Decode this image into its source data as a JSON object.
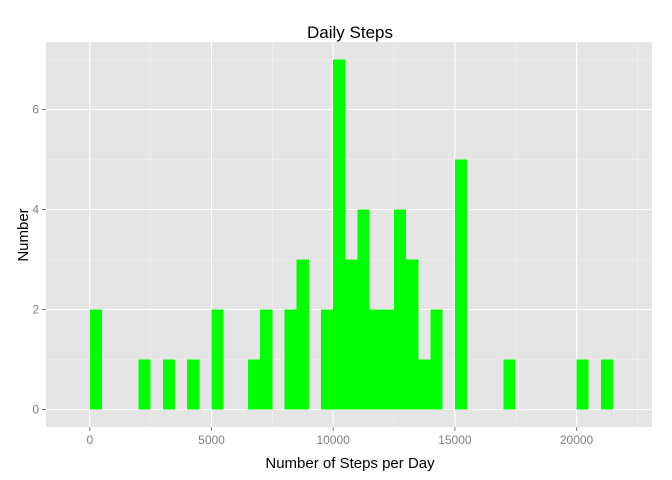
{
  "chart_data": {
    "type": "bar",
    "title": "Daily Steps",
    "xlabel": "Number of Steps per Day",
    "ylabel": "Number",
    "xlim": [
      -1800,
      23100
    ],
    "ylim": [
      -0.35,
      7.35
    ],
    "x_ticks": [
      0,
      5000,
      10000,
      15000,
      20000
    ],
    "x_tick_labels": [
      "0",
      "5000",
      "10000",
      "15000",
      "20000"
    ],
    "y_ticks": [
      0,
      2,
      4,
      6
    ],
    "y_tick_labels": [
      "0",
      "2",
      "4",
      "6"
    ],
    "bin_width": 500,
    "bins": [
      {
        "x0": 0,
        "x1": 500,
        "count": 2
      },
      {
        "x0": 2000,
        "x1": 2500,
        "count": 1
      },
      {
        "x0": 3000,
        "x1": 3500,
        "count": 1
      },
      {
        "x0": 4000,
        "x1": 4500,
        "count": 1
      },
      {
        "x0": 5000,
        "x1": 5500,
        "count": 2
      },
      {
        "x0": 6500,
        "x1": 7000,
        "count": 1
      },
      {
        "x0": 7000,
        "x1": 7500,
        "count": 2
      },
      {
        "x0": 8000,
        "x1": 8500,
        "count": 2
      },
      {
        "x0": 8500,
        "x1": 9000,
        "count": 3
      },
      {
        "x0": 9500,
        "x1": 10000,
        "count": 2
      },
      {
        "x0": 10000,
        "x1": 10500,
        "count": 7
      },
      {
        "x0": 10500,
        "x1": 11000,
        "count": 3
      },
      {
        "x0": 11000,
        "x1": 11500,
        "count": 4
      },
      {
        "x0": 11500,
        "x1": 12000,
        "count": 2
      },
      {
        "x0": 12000,
        "x1": 12500,
        "count": 2
      },
      {
        "x0": 12500,
        "x1": 13000,
        "count": 4
      },
      {
        "x0": 13000,
        "x1": 13500,
        "count": 3
      },
      {
        "x0": 13500,
        "x1": 14000,
        "count": 1
      },
      {
        "x0": 14000,
        "x1": 14500,
        "count": 2
      },
      {
        "x0": 15000,
        "x1": 15500,
        "count": 5
      },
      {
        "x0": 17000,
        "x1": 17500,
        "count": 1
      },
      {
        "x0": 20000,
        "x1": 20500,
        "count": 1
      },
      {
        "x0": 21000,
        "x1": 21500,
        "count": 1
      }
    ],
    "bar_color": "#00ff00",
    "panel_background": "#e5e5e5",
    "grid_color": "#ffffff",
    "grid": true,
    "legend": "none"
  }
}
